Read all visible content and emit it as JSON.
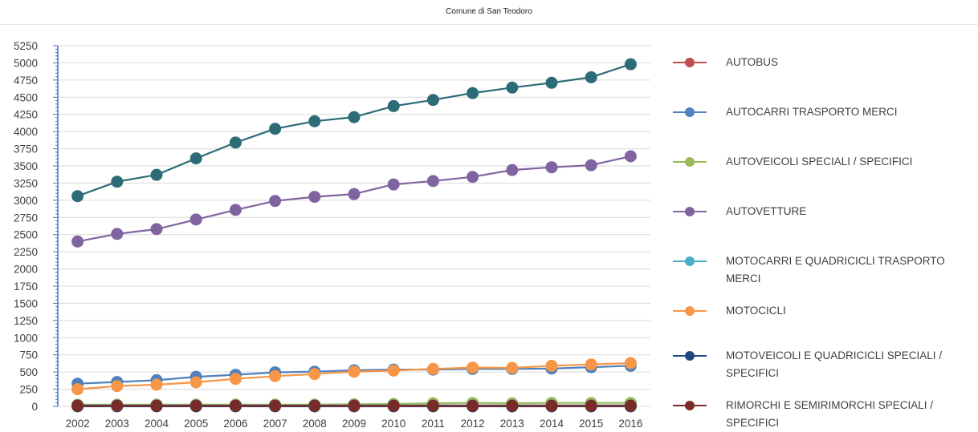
{
  "chart_data": {
    "type": "line",
    "title": "Comune di San Teodoro",
    "x": [
      "2002",
      "2003",
      "2004",
      "2005",
      "2006",
      "2007",
      "2008",
      "2009",
      "2010",
      "2011",
      "2012",
      "2013",
      "2014",
      "2015",
      "2016"
    ],
    "ylim": [
      0,
      5250
    ],
    "yticks": [
      0,
      250,
      500,
      750,
      1000,
      1250,
      1500,
      1750,
      2000,
      2250,
      2500,
      2750,
      3000,
      3250,
      3500,
      3750,
      4000,
      4250,
      4500,
      4750,
      5000,
      5250
    ],
    "grid": true,
    "legend": "right",
    "series": [
      {
        "name": "AUTOBUS",
        "color": "#c0504d",
        "values": [
          0,
          0,
          0,
          0,
          0,
          0,
          0,
          0,
          0,
          0,
          0,
          0,
          0,
          0,
          0
        ]
      },
      {
        "name": "AUTOCARRI TRASPORTO MERCI",
        "color": "#4f81bd",
        "values": [
          330,
          355,
          380,
          430,
          460,
          495,
          505,
          525,
          535,
          535,
          545,
          545,
          550,
          570,
          590
        ]
      },
      {
        "name": "AUTOVEICOLI SPECIALI / SPECIFICI",
        "color": "#9bbb59",
        "values": [
          25,
          25,
          25,
          25,
          25,
          25,
          25,
          30,
          35,
          45,
          50,
          45,
          50,
          50,
          50
        ]
      },
      {
        "name": "AUTOVETTURE",
        "color": "#8064a2",
        "values": [
          2400,
          2510,
          2580,
          2720,
          2860,
          2990,
          3050,
          3090,
          3230,
          3280,
          3340,
          3440,
          3480,
          3510,
          3640
        ]
      },
      {
        "name": "MOTOCARRI E QUADRICICLI TRASPORTO MERCI",
        "color": "#4bacc6",
        "values": [
          15,
          15,
          15,
          15,
          15,
          15,
          15,
          15,
          15,
          15,
          15,
          15,
          15,
          15,
          15
        ]
      },
      {
        "name": "MOTOCICLI",
        "color": "#f79646",
        "values": [
          250,
          295,
          315,
          350,
          400,
          440,
          470,
          505,
          520,
          545,
          565,
          560,
          590,
          610,
          630
        ]
      },
      {
        "name": "MOTOVEICOLI E QUADRICICLI SPECIALI / SPECIFICI",
        "color": "#1f497d",
        "values": [
          2,
          2,
          2,
          2,
          2,
          2,
          2,
          2,
          2,
          2,
          2,
          2,
          2,
          2,
          2
        ]
      },
      {
        "name": "RIMORCHI E SEMIRIMORCHI SPECIALI / SPECIFICI",
        "color": "#772c2a",
        "values": [
          10,
          10,
          10,
          10,
          10,
          10,
          10,
          10,
          10,
          10,
          10,
          10,
          10,
          10,
          10
        ]
      },
      {
        "name": "",
        "color": "#2c6c76",
        "values": [
          3060,
          3270,
          3370,
          3610,
          3840,
          4040,
          4150,
          4210,
          4370,
          4460,
          4560,
          4640,
          4710,
          4790,
          4980
        ]
      }
    ]
  }
}
